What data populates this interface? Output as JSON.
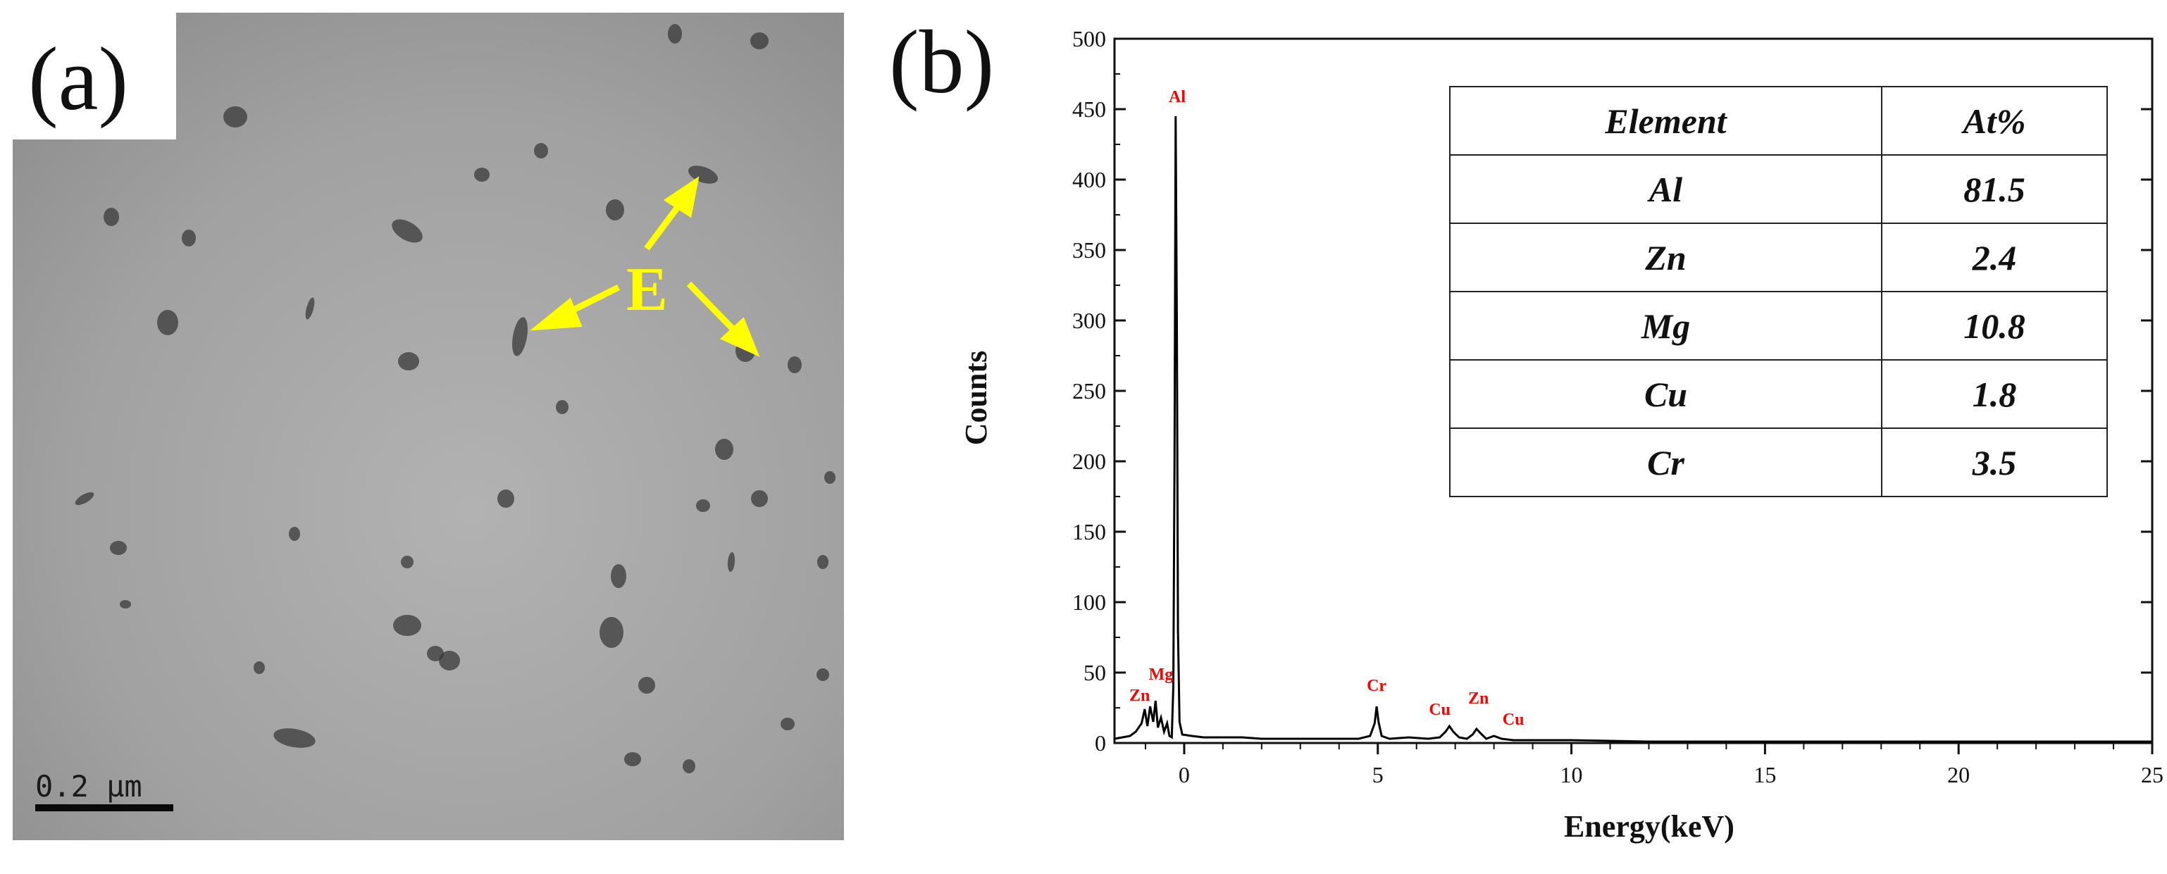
{
  "panel_a": {
    "letter": "(a)",
    "label": "E",
    "scale_bar": "0.2 µm"
  },
  "panel_b": {
    "letter": "(b)"
  },
  "chart_data": {
    "type": "line",
    "title": "",
    "xlabel": "Energy(keV)",
    "ylabel": "Counts",
    "xlim": [
      -1.8,
      25
    ],
    "ylim": [
      0,
      500
    ],
    "xticks": [
      0,
      5,
      10,
      15,
      20,
      25
    ],
    "yticks": [
      0,
      50,
      100,
      150,
      200,
      250,
      300,
      350,
      400,
      450,
      500
    ],
    "series": [
      {
        "x": [
          -1.8,
          -1.6,
          -1.4,
          -1.25,
          -1.1,
          -1.02,
          -0.95,
          -0.88,
          -0.8,
          -0.74,
          -0.68,
          -0.6,
          -0.52,
          -0.44,
          -0.38,
          -0.32,
          -0.28,
          -0.25,
          -0.22,
          -0.19,
          -0.16,
          -0.12,
          -0.05,
          0.2,
          0.5,
          1.0,
          1.5,
          2.0,
          2.5,
          3.0,
          3.5,
          4.0,
          4.5,
          4.8,
          4.92,
          4.97,
          5.02,
          5.1,
          5.3,
          5.8,
          6.3,
          6.6,
          6.75,
          6.85,
          6.95,
          7.1,
          7.3,
          7.45,
          7.55,
          7.65,
          7.8,
          8.0,
          8.2,
          8.5,
          9.0,
          10,
          12,
          15,
          18,
          20,
          22,
          25
        ],
        "y": [
          3,
          4,
          5,
          8,
          14,
          24,
          12,
          26,
          15,
          30,
          11,
          18,
          8,
          14,
          5,
          4,
          40,
          200,
          445,
          300,
          80,
          15,
          6,
          5,
          4,
          4,
          4,
          3,
          3,
          3,
          3,
          3,
          3,
          5,
          14,
          26,
          15,
          5,
          3,
          4,
          3,
          4,
          8,
          12,
          8,
          4,
          3,
          6,
          10,
          7,
          3,
          5,
          3,
          2,
          2,
          2,
          1,
          1,
          1,
          1,
          1,
          1
        ]
      }
    ],
    "peak_labels": [
      {
        "text": "Al",
        "x": -0.18,
        "y": 452
      },
      {
        "text": "Zn",
        "x": -1.15,
        "y": 27
      },
      {
        "text": "Mg",
        "x": -0.6,
        "y": 42
      },
      {
        "text": "Cr",
        "x": 4.97,
        "y": 34
      },
      {
        "text": "Cu",
        "x": 6.6,
        "y": 17
      },
      {
        "text": "Zn",
        "x": 7.6,
        "y": 25
      },
      {
        "text": "Cu",
        "x": 8.5,
        "y": 10
      }
    ],
    "peak_label_color": "#ff0000",
    "grid": false,
    "table": {
      "headers": [
        "Element",
        "At%"
      ],
      "rows": [
        [
          "Al",
          "81.5"
        ],
        [
          "Zn",
          "2.4"
        ],
        [
          "Mg",
          "10.8"
        ],
        [
          "Cu",
          "1.8"
        ],
        [
          "Cr",
          "3.5"
        ]
      ]
    }
  },
  "colors": {
    "tem_background": "#9e9e9e",
    "particle": "#3a3a3a",
    "arrow": "#ffff00",
    "spectrum_line": "#000000"
  }
}
